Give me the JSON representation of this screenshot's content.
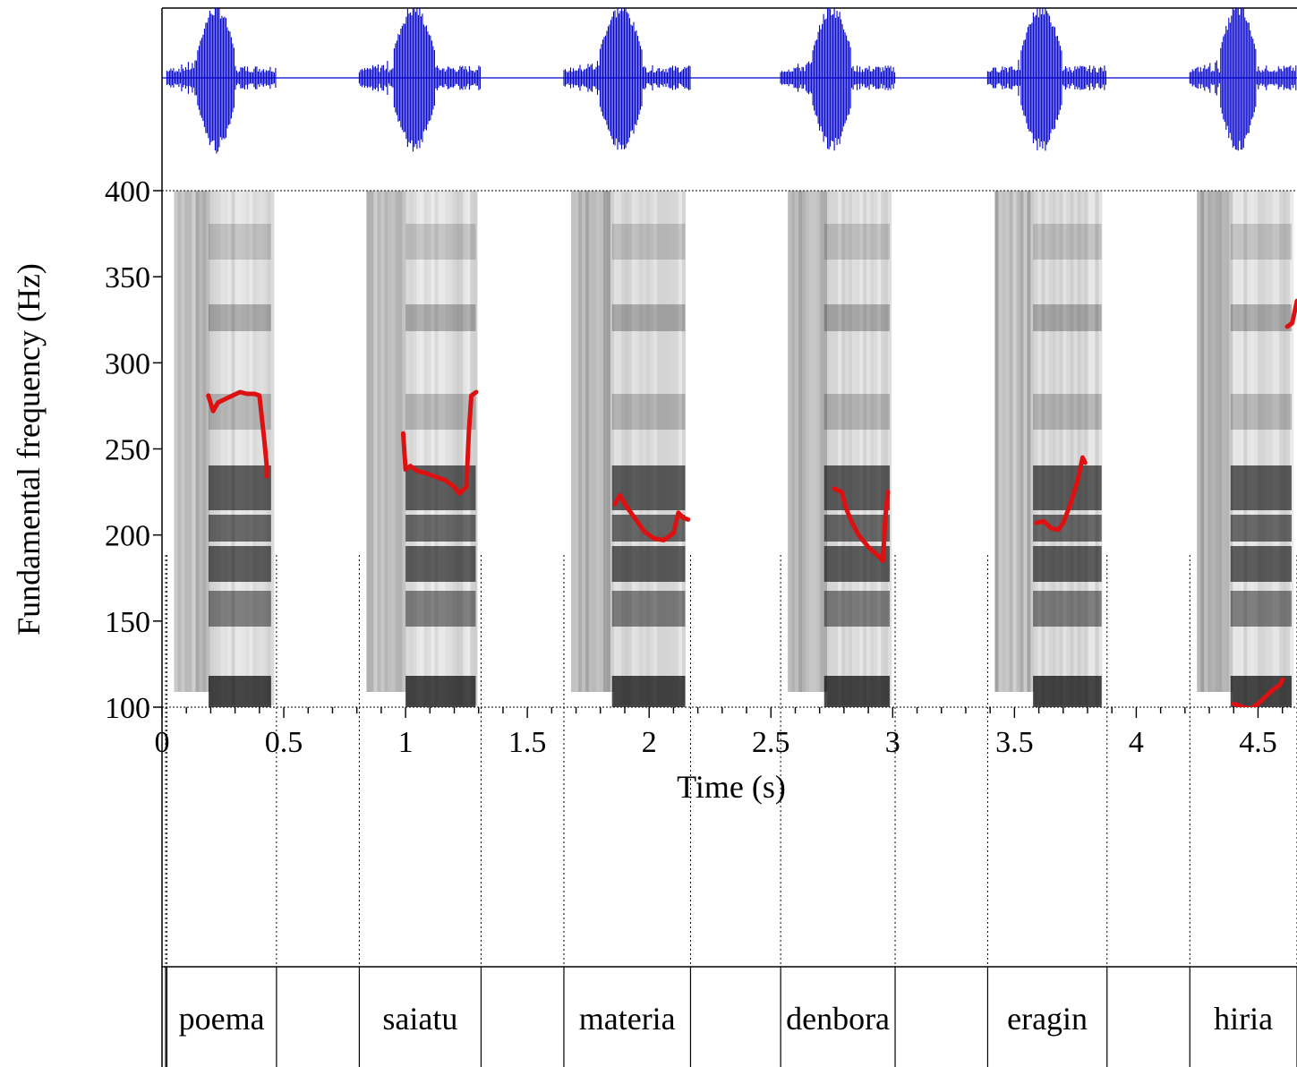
{
  "chart_data": {
    "type": "line",
    "xlabel": "Time (s)",
    "ylabel": "Fundamental frequency (Hz)",
    "xlim": [
      0,
      4.66
    ],
    "ylim": [
      100,
      400
    ],
    "x_ticks": [
      0,
      0.5,
      1,
      1.5,
      2,
      2.5,
      3,
      3.5,
      4,
      4.5
    ],
    "x_tick_labels": [
      "0",
      "0.5",
      "1",
      "1.5",
      "2",
      "2.5",
      "3",
      "3.5",
      "4",
      "4.5"
    ],
    "y_ticks": [
      100,
      150,
      200,
      250,
      300,
      350,
      400
    ],
    "y_tick_labels": [
      "100",
      "150",
      "200",
      "250",
      "300",
      "350",
      "400"
    ],
    "colors": {
      "waveform": "#0000cc",
      "pitch": "#dd1111",
      "spectrogram": "#000000",
      "frame": "#000000"
    },
    "words": [
      {
        "label": "poema",
        "start": 0.47,
        "end": 0.47,
        "segment": [
          0.02,
          0.47
        ]
      },
      {
        "label": "saiatu",
        "start": 0.81,
        "end": 1.31,
        "segment": [
          0.81,
          1.31
        ]
      },
      {
        "label": "materia",
        "start": 1.65,
        "end": 2.17,
        "segment": [
          1.65,
          2.17
        ]
      },
      {
        "label": "denbora",
        "start": 2.54,
        "end": 3.01,
        "segment": [
          2.54,
          3.01
        ]
      },
      {
        "label": "eragin",
        "start": 3.39,
        "end": 3.88,
        "segment": [
          3.39,
          3.88
        ]
      },
      {
        "label": "hiria",
        "start": 4.22,
        "end": 4.66,
        "segment": [
          4.22,
          4.66
        ]
      }
    ],
    "series": [
      {
        "points": [
          [
            0.19,
            281
          ],
          [
            0.21,
            272
          ],
          [
            0.23,
            277
          ],
          [
            0.26,
            279
          ],
          [
            0.29,
            281
          ],
          [
            0.32,
            283
          ],
          [
            0.35,
            282
          ],
          [
            0.38,
            282
          ],
          [
            0.4,
            281
          ],
          [
            0.42,
            255
          ],
          [
            0.43,
            240
          ],
          [
            0.43,
            234
          ]
        ]
      },
      {
        "points": [
          [
            0.99,
            259
          ],
          [
            1.0,
            238
          ],
          [
            1.02,
            240
          ],
          [
            1.05,
            237
          ],
          [
            1.08,
            236
          ],
          [
            1.12,
            234
          ],
          [
            1.16,
            232
          ],
          [
            1.2,
            228
          ],
          [
            1.22,
            224
          ],
          [
            1.25,
            228
          ],
          [
            1.26,
            260
          ],
          [
            1.27,
            281
          ],
          [
            1.29,
            283
          ]
        ]
      },
      {
        "points": [
          [
            1.86,
            218
          ],
          [
            1.88,
            223
          ],
          [
            1.9,
            218
          ],
          [
            1.94,
            210
          ],
          [
            1.98,
            202
          ],
          [
            2.02,
            198
          ],
          [
            2.06,
            197
          ],
          [
            2.1,
            201
          ],
          [
            2.12,
            213
          ],
          [
            2.14,
            210
          ],
          [
            2.16,
            209
          ]
        ]
      },
      {
        "points": [
          [
            2.76,
            227
          ],
          [
            2.79,
            225
          ],
          [
            2.81,
            215
          ],
          [
            2.83,
            208
          ],
          [
            2.86,
            200
          ],
          [
            2.9,
            193
          ],
          [
            2.94,
            188
          ],
          [
            2.96,
            185
          ],
          [
            2.97,
            210
          ],
          [
            2.98,
            225
          ]
        ]
      },
      {
        "points": [
          [
            3.59,
            207
          ],
          [
            3.62,
            208
          ],
          [
            3.65,
            204
          ],
          [
            3.68,
            203
          ],
          [
            3.7,
            207
          ],
          [
            3.73,
            218
          ],
          [
            3.76,
            232
          ],
          [
            3.78,
            245
          ],
          [
            3.79,
            242
          ]
        ]
      },
      {
        "points": [
          [
            4.4,
            102
          ],
          [
            4.44,
            100
          ],
          [
            4.47,
            99
          ],
          [
            4.5,
            102
          ],
          [
            4.53,
            106
          ],
          [
            4.56,
            110
          ],
          [
            4.59,
            113
          ],
          [
            4.6,
            116
          ]
        ]
      },
      {
        "points": [
          [
            4.62,
            321
          ],
          [
            4.64,
            323
          ],
          [
            4.66,
            336
          ]
        ]
      }
    ]
  }
}
